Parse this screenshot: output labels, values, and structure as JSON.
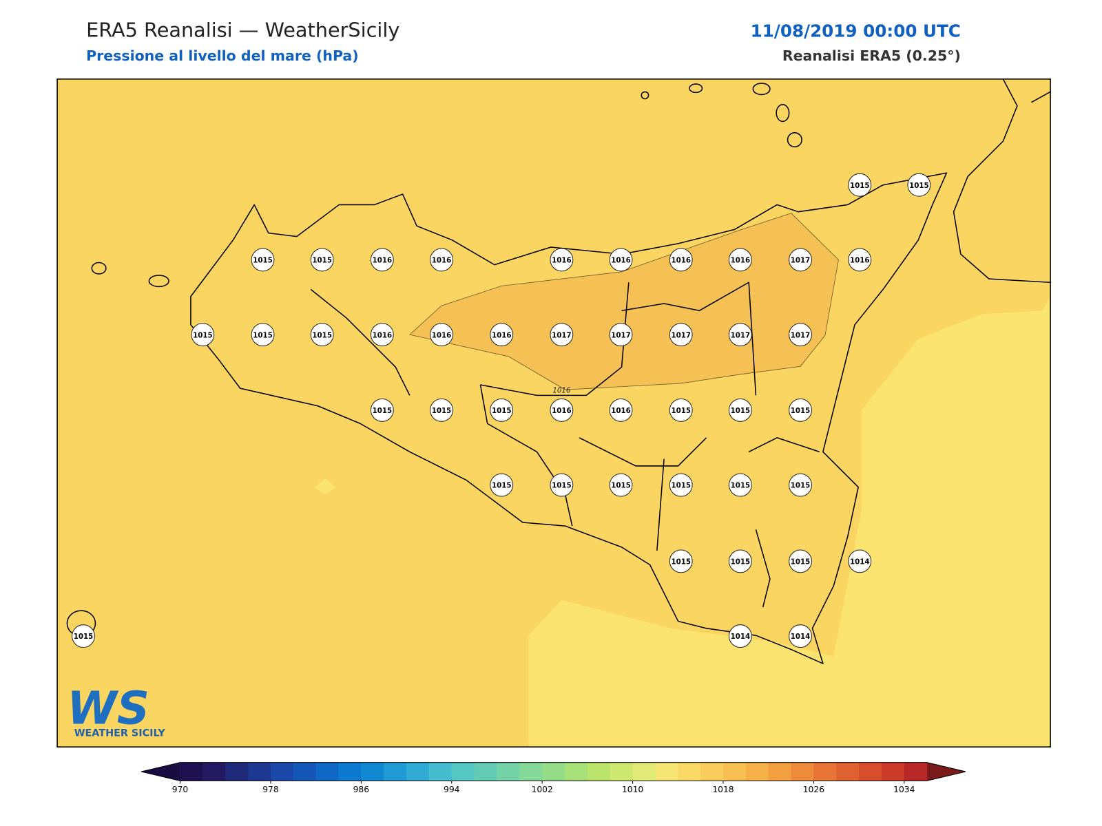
{
  "header": {
    "title": "ERA5 Reanalisi — WeatherSicily",
    "subtitle": "Pressione al livello del mare (hPa)",
    "datetime": "11/08/2019 00:00 UTC",
    "source": "Reanalisi ERA5 (0.25°)"
  },
  "map": {
    "contour_label": "1016",
    "stations": [
      1015,
      1015,
      1015,
      1015,
      1016,
      1016,
      1016,
      1016,
      1016,
      1016,
      1017,
      1016,
      1015,
      1015,
      1015,
      1016,
      1016,
      1016,
      1017,
      1017,
      1017,
      1017,
      1017,
      1015,
      1015,
      1015,
      1016,
      1016,
      1015,
      1015,
      1015,
      1015,
      1015,
      1015,
      1015,
      1015,
      1015,
      1015,
      1015,
      1015,
      1014,
      1015,
      1014,
      1014
    ]
  },
  "colorbar": {
    "clim": [
      970,
      1036
    ],
    "ticks": [
      970,
      978,
      986,
      994,
      1002,
      1010,
      1018,
      1026,
      1034
    ],
    "colors": [
      "#1f1050",
      "#231a62",
      "#1f2a7a",
      "#1d3890",
      "#1a48a8",
      "#1557b8",
      "#1068c6",
      "#0c7ad0",
      "#1189d2",
      "#1e9bd4",
      "#30acd4",
      "#45bdcf",
      "#55c7c2",
      "#64ccb4",
      "#73d2a6",
      "#84d898",
      "#95dc89",
      "#a8e07a",
      "#bbe46d",
      "#cfe870",
      "#e1ea77",
      "#f5e573",
      "#fad865",
      "#f9cd5c",
      "#f8c050",
      "#f5b047",
      "#f29f40",
      "#ee8b3a",
      "#e87535",
      "#e06130",
      "#d84d2c",
      "#cc3a2a",
      "#b82828"
    ],
    "under_color": "#1a0c40",
    "over_color": "#7a1a1a"
  },
  "logo": {
    "mark": "WS",
    "name": "WEATHER SICILY"
  }
}
